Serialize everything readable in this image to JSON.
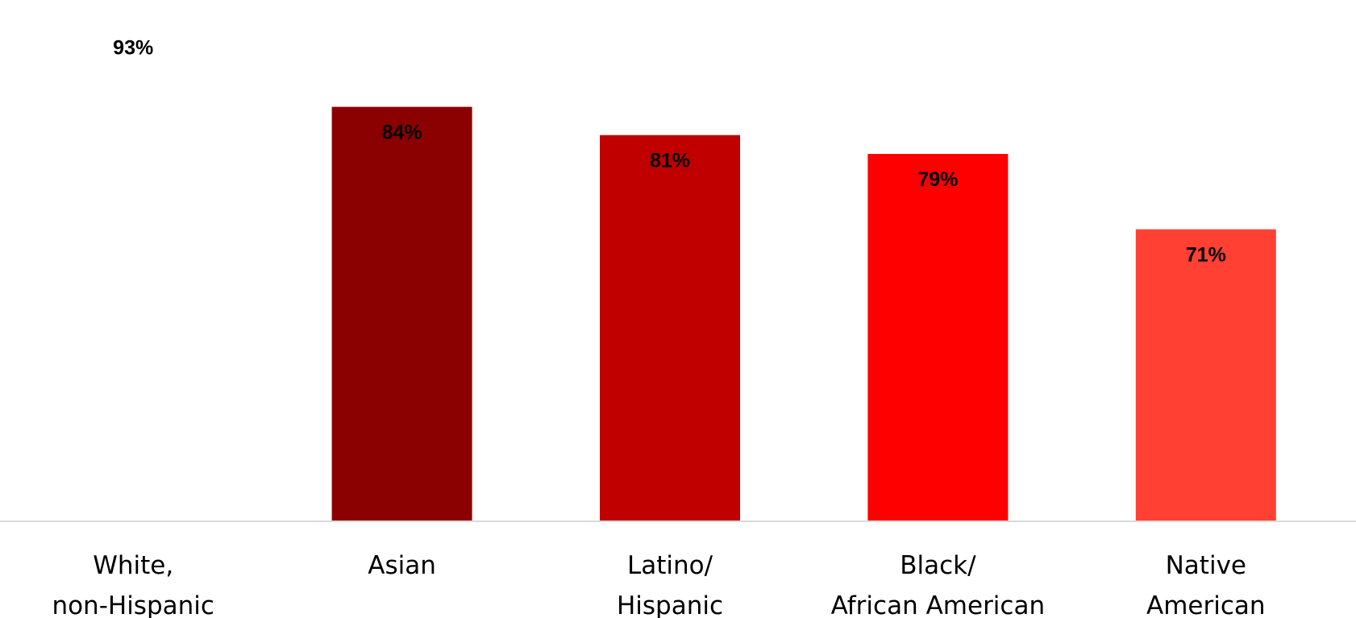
{
  "chart_data": {
    "type": "bar",
    "categories": [
      [
        "White,",
        "non-Hispanic"
      ],
      [
        "Asian"
      ],
      [
        "Latino/",
        "Hispanic"
      ],
      [
        "Black/",
        "African American"
      ],
      [
        "Native",
        "American"
      ]
    ],
    "values": [
      93,
      84,
      81,
      79,
      71
    ],
    "data_labels": [
      "93%",
      "84%",
      "81%",
      "79%",
      "71%"
    ],
    "colors": [
      "#ffffff",
      "#8b0000",
      "#c00000",
      "#ff0000",
      "#ff4033"
    ],
    "title": "",
    "xlabel": "",
    "ylabel": "",
    "ylim": [
      40,
      95
    ],
    "grid": false,
    "legend": "none",
    "axis_color": "#d9d9d9"
  }
}
